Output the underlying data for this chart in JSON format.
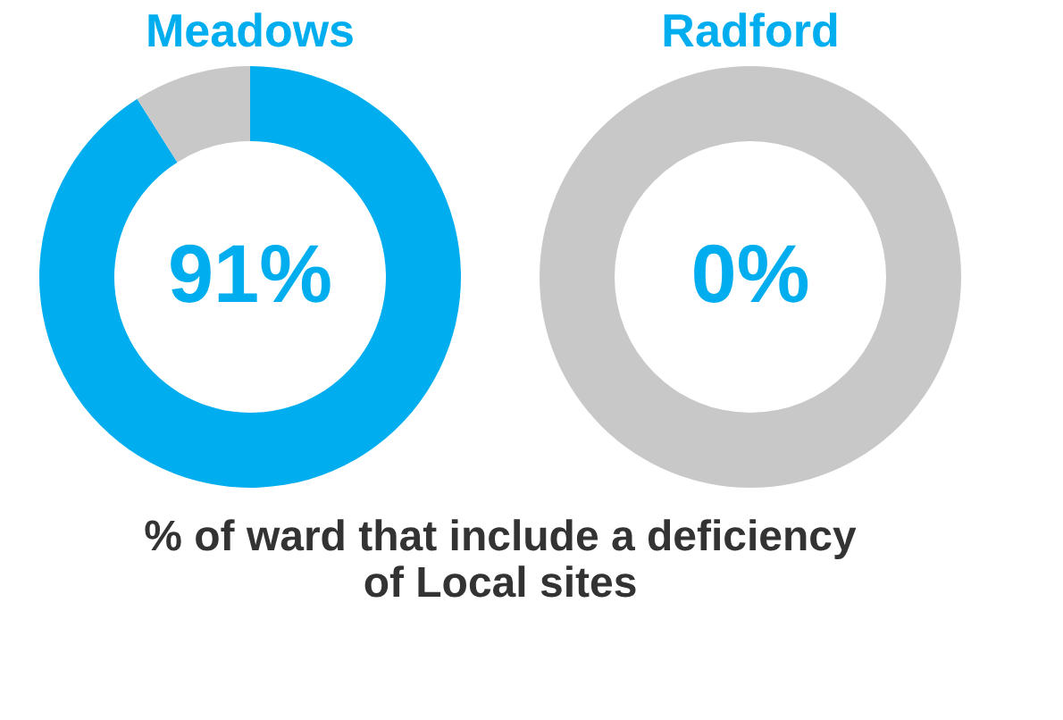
{
  "chart_data": [
    {
      "type": "donut",
      "title": "Meadows",
      "categories": [
        null,
        null
      ],
      "values": [
        91,
        9
      ],
      "colors": [
        "#00aeef",
        "#c8c8c8"
      ],
      "value_labels": [
        "91%",
        null
      ],
      "annotations": [
        "% of ward that include a deficiency of Local sites"
      ]
    },
    {
      "type": "donut",
      "title": "Radford",
      "categories": [
        null,
        null
      ],
      "values": [
        0,
        100
      ],
      "colors": [
        "#00aeef",
        "#c8c8c8"
      ],
      "value_labels": [
        "0%",
        null
      ]
    }
  ]
}
